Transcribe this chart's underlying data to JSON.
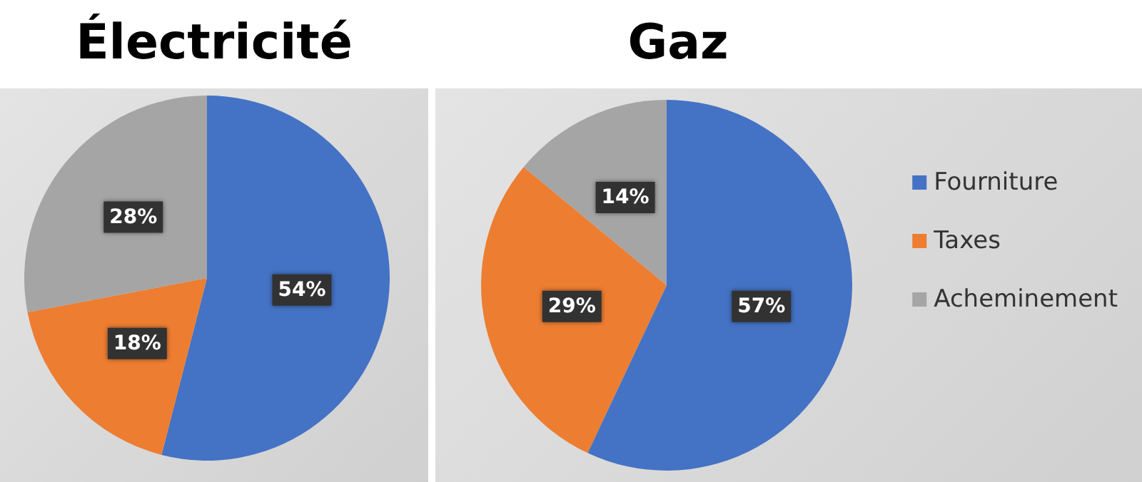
{
  "chart_data": [
    {
      "type": "pie",
      "title": "Électricité",
      "categories": [
        null,
        null,
        null
      ],
      "values": [
        54,
        18,
        28
      ],
      "colors": [
        "#4472c4",
        "#ed7d31",
        "#a5a5a5"
      ],
      "value_labels": [
        "54%",
        "18%",
        "28%"
      ],
      "legend": false
    },
    {
      "type": "pie",
      "title": "Gaz",
      "categories": [
        "Fourniture",
        "Taxes",
        "Acheminement"
      ],
      "values": [
        57,
        29,
        14
      ],
      "colors": [
        "#4472c4",
        "#ed7d31",
        "#a5a5a5"
      ],
      "value_labels": [
        "57%",
        "29%",
        "14%"
      ],
      "legend": "right"
    }
  ]
}
